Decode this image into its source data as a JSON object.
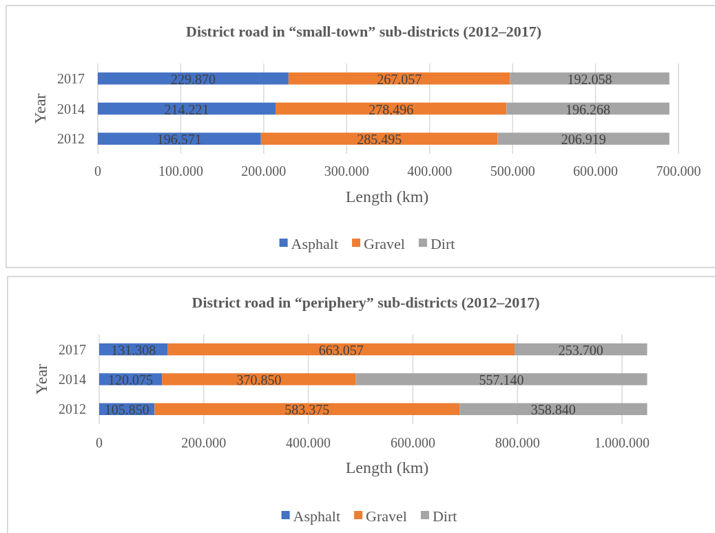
{
  "chart_data": [
    {
      "type": "bar",
      "orientation": "horizontal",
      "stacked": true,
      "title": "District road in “small-town” sub-districts (2012–2017)",
      "xlabel": "Length (km)",
      "ylabel": "Year",
      "categories": [
        "2017",
        "2014",
        "2012"
      ],
      "series": [
        {
          "name": "Asphalt",
          "color": "#4472c4",
          "values": [
            229870,
            214221,
            196571
          ],
          "value_labels": [
            "229.870",
            "214.221",
            "196.571"
          ]
        },
        {
          "name": "Gravel",
          "color": "#ed7d31",
          "values": [
            267057,
            278496,
            285495
          ],
          "value_labels": [
            "267.057",
            "278.496",
            "285.495"
          ]
        },
        {
          "name": "Dirt",
          "color": "#a5a5a5",
          "values": [
            192058,
            196268,
            206919
          ],
          "value_labels": [
            "192.058",
            "196.268",
            "206.919"
          ]
        }
      ],
      "xlim": [
        0,
        700000
      ],
      "xticks": [
        0,
        {
          "value": 100000,
          "label": "100.000"
        },
        {
          "value": 200000,
          "label": "200.000"
        },
        {
          "value": 300000,
          "label": "300.000"
        },
        {
          "value": 400000,
          "label": "400.000"
        },
        {
          "value": 500000,
          "label": "500.000"
        },
        {
          "value": 600000,
          "label": "600.000"
        },
        {
          "value": 700000,
          "label": "700.000"
        }
      ],
      "grid": "x",
      "legend": "bottom"
    },
    {
      "type": "bar",
      "orientation": "horizontal",
      "stacked": true,
      "title": "District road in “periphery” sub-districts (2012–2017)",
      "xlabel": "Length (km)",
      "ylabel": "Year",
      "categories": [
        "2017",
        "2014",
        "2012"
      ],
      "series": [
        {
          "name": "Asphalt",
          "color": "#4472c4",
          "values": [
            131308,
            120075,
            105850
          ],
          "value_labels": [
            "131.308",
            "120.075",
            "105.850"
          ]
        },
        {
          "name": "Gravel",
          "color": "#ed7d31",
          "values": [
            663057,
            370850,
            583375
          ],
          "value_labels": [
            "663.057",
            "370.850",
            "583.375"
          ]
        },
        {
          "name": "Dirt",
          "color": "#a5a5a5",
          "values": [
            253700,
            557140,
            358840
          ],
          "value_labels": [
            "253.700",
            "557.140",
            "358.840"
          ]
        }
      ],
      "xlim": [
        0,
        1050000
      ],
      "xticks": [
        0,
        {
          "value": 200000,
          "label": "200.000"
        },
        {
          "value": 400000,
          "label": "400.000"
        },
        {
          "value": 600000,
          "label": "600.000"
        },
        {
          "value": 800000,
          "label": "800.000"
        },
        {
          "value": 1000000,
          "label": "1.000.000"
        }
      ],
      "grid": "x",
      "legend": "bottom"
    }
  ]
}
